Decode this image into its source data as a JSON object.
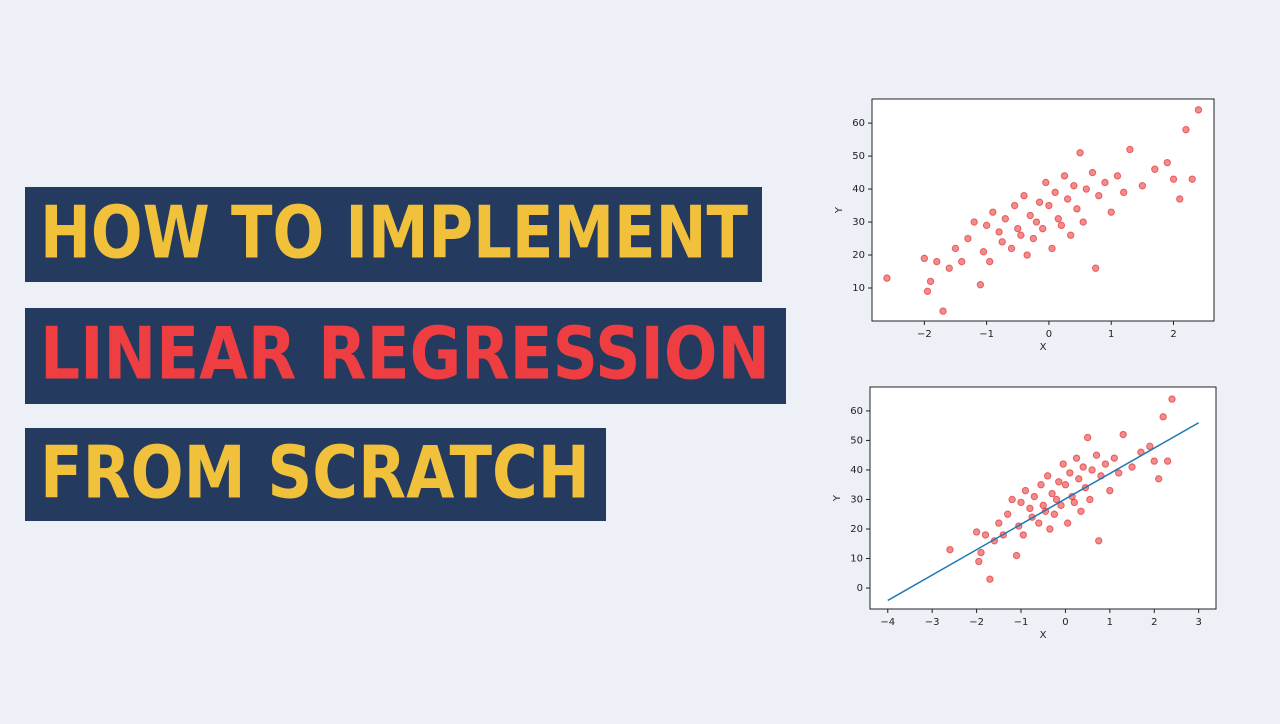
{
  "banner": {
    "lines": [
      {
        "text": "HOW TO IMPLEMENT",
        "color": "#f2c13c"
      },
      {
        "text": "LINEAR REGRESSION",
        "color": "#ef3e42"
      },
      {
        "text": "FROM SCRATCH",
        "color": "#f2c13c"
      }
    ]
  },
  "chart_data": [
    {
      "type": "scatter",
      "xlabel": "X",
      "ylabel": "Y",
      "xlim": [
        -2.84,
        2.65
      ],
      "ylim": [
        0,
        67.3
      ],
      "xticks": [
        {
          "value": -2,
          "label": "−2"
        },
        {
          "value": -1,
          "label": "−1"
        },
        0,
        1,
        2
      ],
      "yticks": [
        10,
        20,
        30,
        40,
        50,
        60
      ],
      "points": {
        "color": "#e41a1c",
        "x": [
          -2.6,
          -2.0,
          -1.95,
          -1.9,
          -1.8,
          -1.7,
          -1.6,
          -1.5,
          -1.4,
          -1.3,
          -1.2,
          -1.1,
          -1.05,
          -1.0,
          -0.95,
          -0.9,
          -0.8,
          -0.75,
          -0.7,
          -0.6,
          -0.55,
          -0.5,
          -0.45,
          -0.4,
          -0.35,
          -0.3,
          -0.25,
          -0.2,
          -0.15,
          -0.1,
          -0.05,
          0.0,
          0.05,
          0.1,
          0.15,
          0.2,
          0.25,
          0.3,
          0.35,
          0.4,
          0.45,
          0.5,
          0.55,
          0.6,
          0.7,
          0.75,
          0.8,
          0.9,
          1.0,
          1.1,
          1.2,
          1.3,
          1.5,
          1.7,
          1.9,
          2.0,
          2.1,
          2.2,
          2.3,
          2.4
        ],
        "y": [
          13,
          19,
          9,
          12,
          18,
          3,
          16,
          22,
          18,
          25,
          30,
          11,
          21,
          29,
          18,
          33,
          27,
          24,
          31,
          22,
          35,
          28,
          26,
          38,
          20,
          32,
          25,
          30,
          36,
          28,
          42,
          35,
          22,
          39,
          31,
          29,
          44,
          37,
          26,
          41,
          34,
          51,
          30,
          40,
          45,
          16,
          38,
          42,
          33,
          44,
          39,
          52,
          41,
          46,
          48,
          43,
          37,
          58,
          43,
          64
        ]
      }
    },
    {
      "type": "scatter",
      "xlabel": "X",
      "ylabel": "Y",
      "xlim": [
        -4.4,
        3.39
      ],
      "ylim": [
        -7.1,
        68.1
      ],
      "xticks": [
        {
          "value": -4,
          "label": "−4"
        },
        {
          "value": -3,
          "label": "−3"
        },
        {
          "value": -2,
          "label": "−2"
        },
        {
          "value": -1,
          "label": "−1"
        },
        0,
        1,
        2,
        3
      ],
      "yticks": [
        0,
        10,
        20,
        30,
        40,
        50,
        60
      ],
      "points": {
        "color": "#e41a1c",
        "x": [
          -2.6,
          -2.0,
          -1.95,
          -1.9,
          -1.8,
          -1.7,
          -1.6,
          -1.5,
          -1.4,
          -1.3,
          -1.2,
          -1.1,
          -1.05,
          -1.0,
          -0.95,
          -0.9,
          -0.8,
          -0.75,
          -0.7,
          -0.6,
          -0.55,
          -0.5,
          -0.45,
          -0.4,
          -0.35,
          -0.3,
          -0.25,
          -0.2,
          -0.15,
          -0.1,
          -0.05,
          0.0,
          0.05,
          0.1,
          0.15,
          0.2,
          0.25,
          0.3,
          0.35,
          0.4,
          0.45,
          0.5,
          0.55,
          0.6,
          0.7,
          0.75,
          0.8,
          0.9,
          1.0,
          1.1,
          1.2,
          1.3,
          1.5,
          1.7,
          1.9,
          2.0,
          2.1,
          2.2,
          2.3,
          2.4
        ],
        "y": [
          13,
          19,
          9,
          12,
          18,
          3,
          16,
          22,
          18,
          25,
          30,
          11,
          21,
          29,
          18,
          33,
          27,
          24,
          31,
          22,
          35,
          28,
          26,
          38,
          20,
          32,
          25,
          30,
          36,
          28,
          42,
          35,
          22,
          39,
          31,
          29,
          44,
          37,
          26,
          41,
          34,
          51,
          30,
          40,
          45,
          16,
          38,
          42,
          33,
          44,
          39,
          52,
          41,
          46,
          48,
          43,
          37,
          58,
          43,
          64
        ]
      },
      "fit_line": {
        "color": "#1f77b4",
        "x": [
          -4,
          3
        ],
        "y": [
          -4.2,
          56
        ]
      }
    }
  ]
}
